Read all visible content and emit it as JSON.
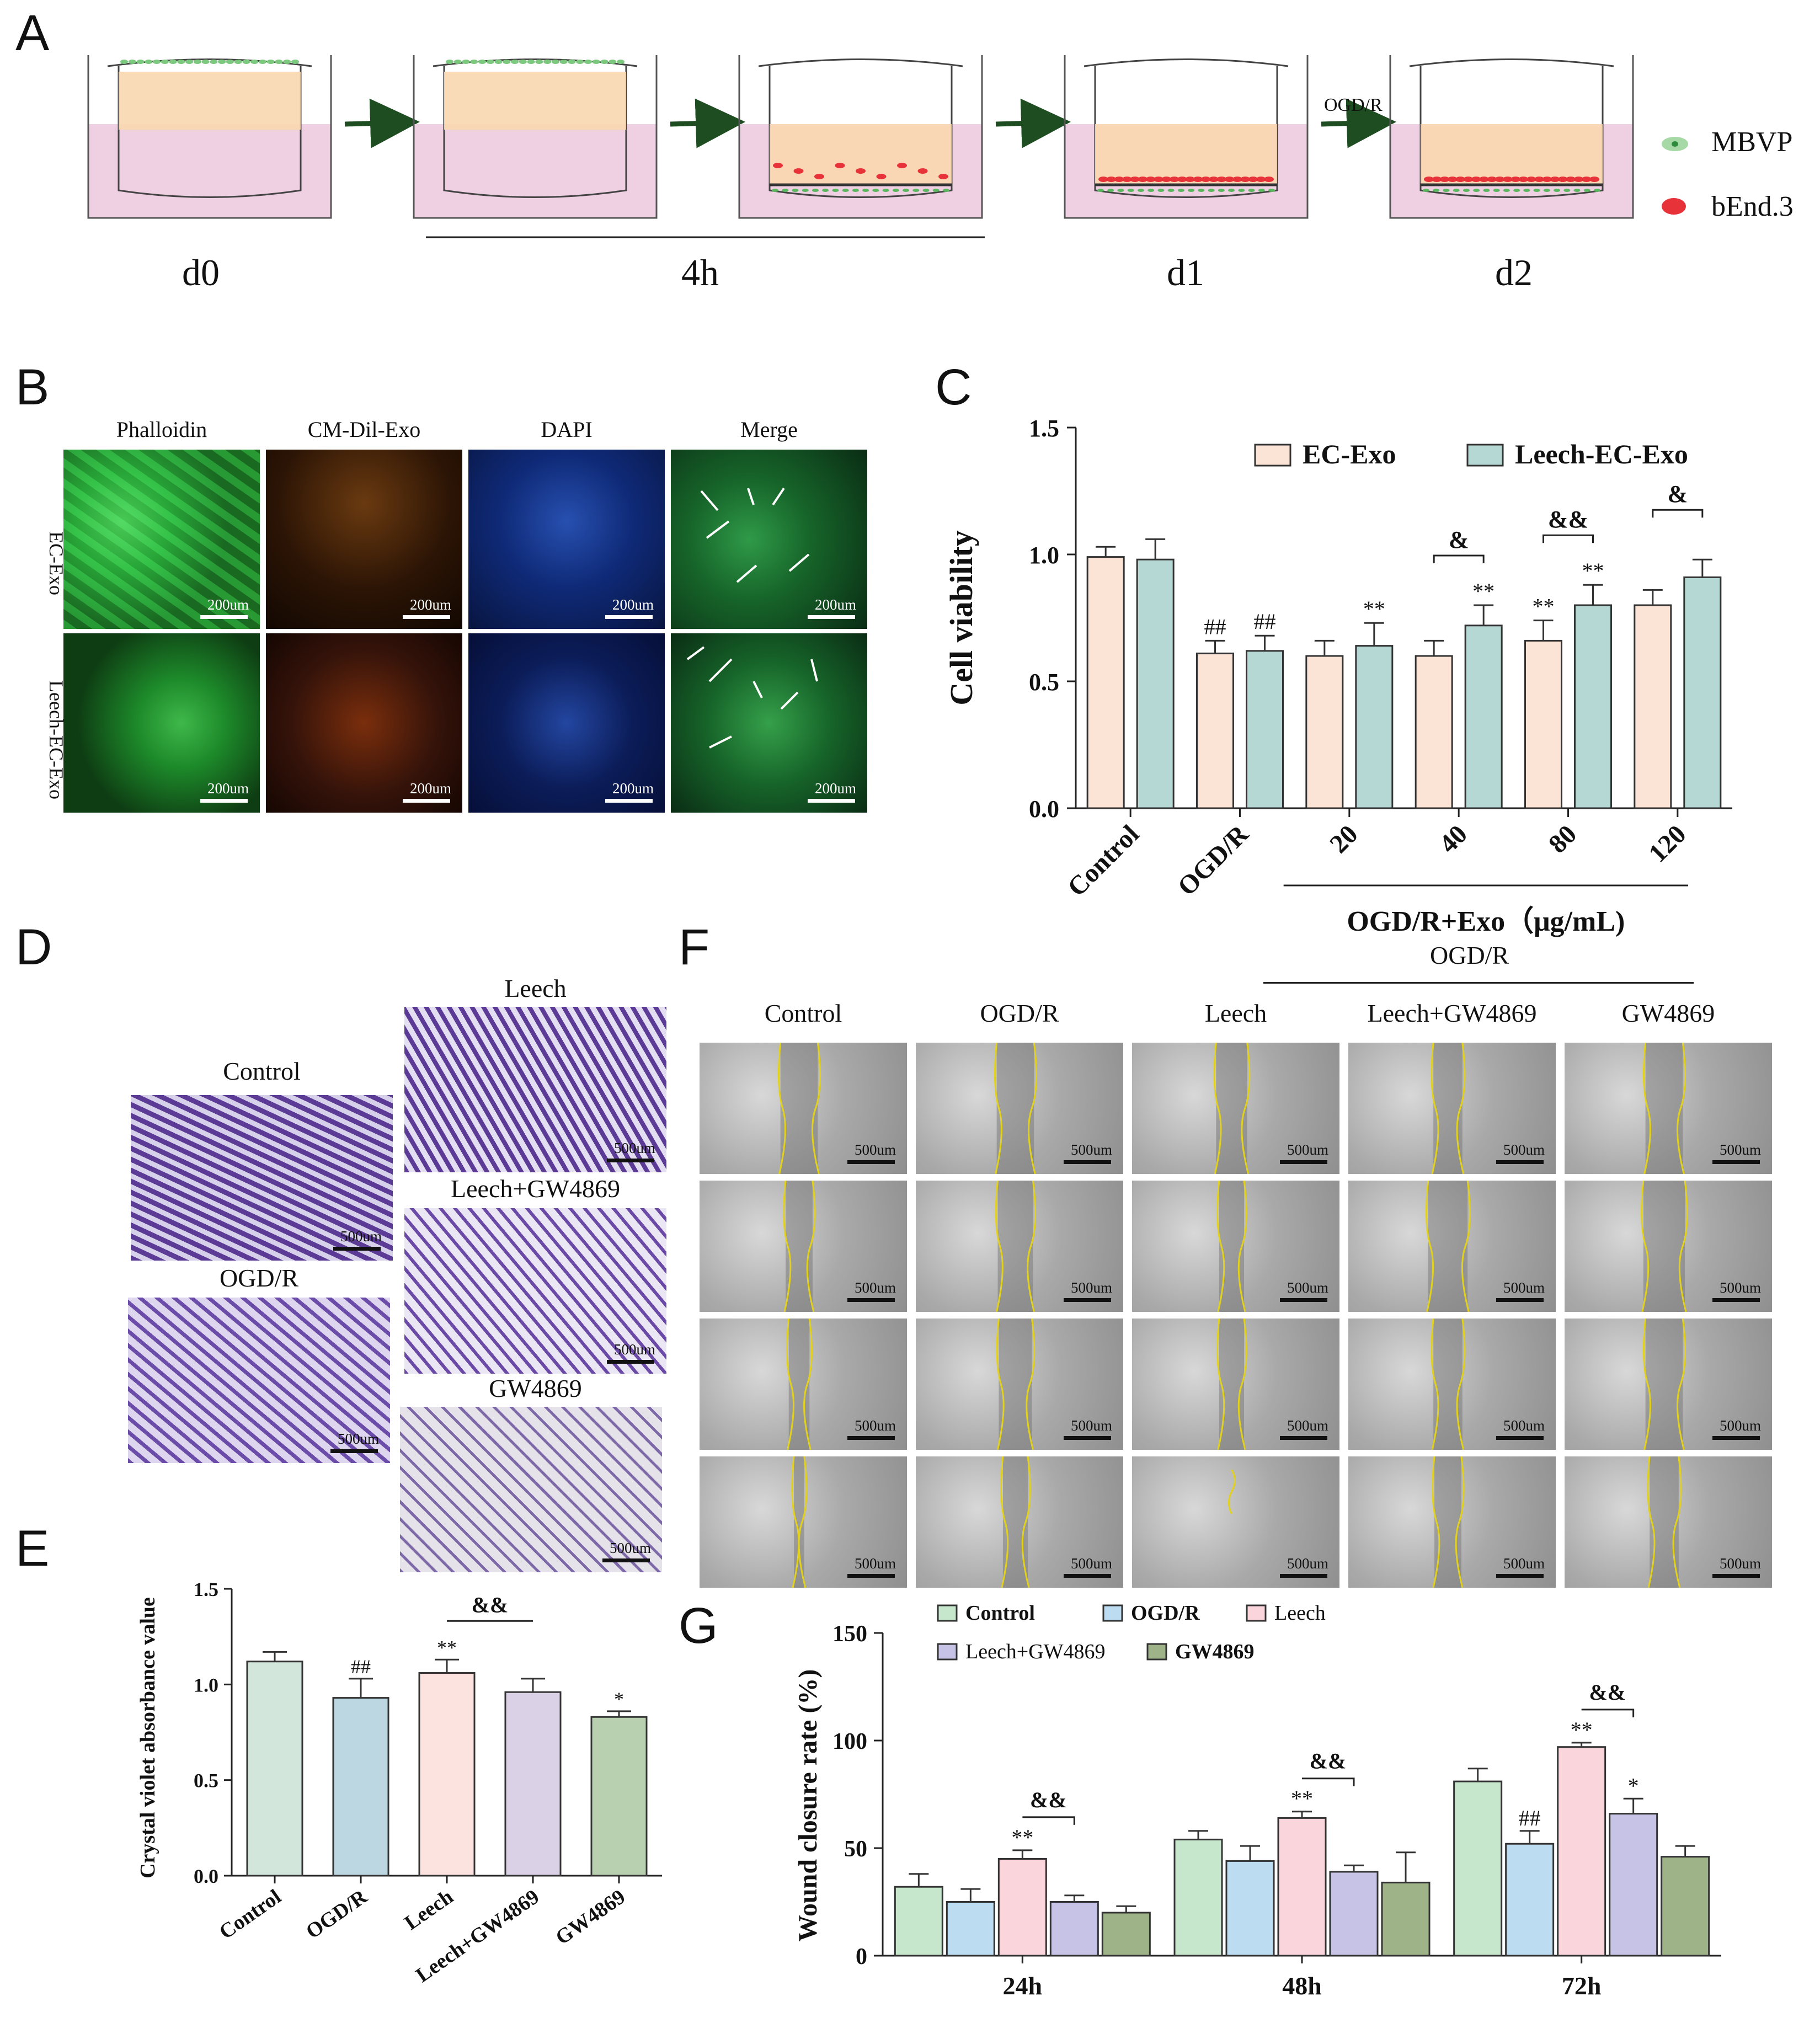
{
  "panels": {
    "A": "A",
    "B": "B",
    "C": "C",
    "D": "D",
    "E": "E",
    "F": "F",
    "G": "G"
  },
  "panelA": {
    "days": [
      "d0",
      "4h",
      "d1",
      "d2"
    ],
    "ogdr_label": "OGD/R",
    "legend": [
      {
        "label": "MBVP",
        "color": "#6cc070"
      },
      {
        "label": "bEnd.3",
        "color": "#e8323a"
      }
    ]
  },
  "panelB": {
    "columns": [
      "Phalloidin",
      "CM-Dil-Exo",
      "DAPI",
      "Merge"
    ],
    "rows": [
      "EC-Exo",
      "Leech-EC-Exo"
    ],
    "scale_bar": "200um",
    "colors": {
      "phalloidin": "#1d8a2a",
      "exo": "#3a1a05",
      "dapi": "#0b1c58",
      "merge": "#17662a"
    }
  },
  "panelC": {
    "chart_data": {
      "type": "bar",
      "title": "",
      "ylabel": "Cell viability",
      "xlabel": "OGD/R+Exo（μg/mL)",
      "ylim": [
        0,
        1.5
      ],
      "yticks": [
        "0.0",
        "0.5",
        "1.0",
        "1.5"
      ],
      "categories": [
        "Control",
        "OGD/R",
        "20",
        "40",
        "80",
        "120"
      ],
      "series": [
        {
          "name": "EC-Exo",
          "color": "#fbe3d6",
          "values": [
            0.99,
            0.61,
            0.6,
            0.6,
            0.66,
            0.8
          ],
          "errors": [
            0.04,
            0.05,
            0.06,
            0.06,
            0.08,
            0.06
          ]
        },
        {
          "name": "Leech-EC-Exo",
          "color": "#b5d8d4",
          "values": [
            0.98,
            0.62,
            0.64,
            0.72,
            0.8,
            0.91
          ],
          "errors": [
            0.08,
            0.06,
            0.09,
            0.08,
            0.08,
            0.07
          ]
        }
      ],
      "annotations": [
        {
          "text": "##",
          "group": 1,
          "series": 0
        },
        {
          "text": "##",
          "group": 1,
          "series": 1
        },
        {
          "text": "**",
          "group": 2,
          "series": 1
        },
        {
          "text": "**",
          "group": 3,
          "series": 1
        },
        {
          "text": "**",
          "group": 4,
          "series": 0
        },
        {
          "text": "**",
          "group": 4,
          "series": 1
        },
        {
          "text": "&",
          "group": 3,
          "bracket": true
        },
        {
          "text": "&&",
          "group": 4,
          "bracket": true
        },
        {
          "text": "&",
          "group": 5,
          "bracket": true
        }
      ]
    }
  },
  "panelD": {
    "labels": {
      "control": "Control",
      "ogdr": "OGD/R",
      "leech": "Leech",
      "leech_gw": "Leech+GW4869",
      "gw": "GW4869"
    },
    "scale_bar": "500um",
    "color": "#5b3b96"
  },
  "panelE": {
    "chart_data": {
      "type": "bar",
      "title": "",
      "ylabel": "Crystal violet absorbance value",
      "xlabel": "",
      "ylim": [
        0,
        1.5
      ],
      "yticks": [
        "0.0",
        "0.5",
        "1.0",
        "1.5"
      ],
      "categories": [
        "Control",
        "OGD/R",
        "Leech",
        "Leech+GW4869",
        "GW4869"
      ],
      "values": [
        1.12,
        0.93,
        1.06,
        0.96,
        0.83
      ],
      "errors": [
        0.05,
        0.1,
        0.07,
        0.07,
        0.03
      ],
      "colors": [
        "#d3e6dc",
        "#bcd7e2",
        "#fde3e0",
        "#dad1e6",
        "#b8cfb0"
      ],
      "annotations": [
        {
          "text": "##",
          "index": 1
        },
        {
          "text": "**",
          "index": 2
        },
        {
          "text": "*",
          "index": 4
        },
        {
          "text": "&&",
          "from": 2,
          "to": 3,
          "bracket": true
        }
      ]
    }
  },
  "panelF": {
    "header_group": "OGD/R",
    "columns": [
      "Control",
      "OGD/R",
      "Leech",
      "Leech+GW4869",
      "GW4869"
    ],
    "scale_bar": "500um",
    "color": "#9a9a9a",
    "edge_color": "#e2d11c"
  },
  "panelG": {
    "chart_data": {
      "type": "bar",
      "title": "",
      "ylabel": "Wound closure rate (%)",
      "xlabel": "",
      "ylim": [
        0,
        150
      ],
      "yticks": [
        "0",
        "50",
        "100",
        "150"
      ],
      "categories": [
        "24h",
        "48h",
        "72h"
      ],
      "series": [
        {
          "name": "Control",
          "color": "#c7e7cd",
          "values": [
            32,
            54,
            81
          ],
          "errors": [
            6,
            4,
            6
          ]
        },
        {
          "name": "OGD/R",
          "color": "#bcdcf2",
          "values": [
            25,
            44,
            52
          ],
          "errors": [
            6,
            7,
            6
          ]
        },
        {
          "name": "Leech",
          "color": "#fbd5dc",
          "values": [
            45,
            64,
            97
          ],
          "errors": [
            4,
            3,
            2
          ]
        },
        {
          "name": "Leech+GW4869",
          "color": "#c6c3e6",
          "values": [
            25,
            39,
            66
          ],
          "errors": [
            3,
            3,
            7
          ]
        },
        {
          "name": "GW4869",
          "color": "#9fb389",
          "values": [
            20,
            34,
            46
          ],
          "errors": [
            3,
            14,
            5
          ]
        }
      ],
      "annotations": [
        {
          "text": "**",
          "group": 0,
          "series": 2
        },
        {
          "text": "&&",
          "group": 0,
          "bracket": [
            2,
            3
          ]
        },
        {
          "text": "**",
          "group": 1,
          "series": 2
        },
        {
          "text": "&&",
          "group": 1,
          "bracket": [
            2,
            3
          ]
        },
        {
          "text": "##",
          "group": 2,
          "series": 1
        },
        {
          "text": "**",
          "group": 2,
          "series": 2
        },
        {
          "text": "*",
          "group": 2,
          "series": 3
        },
        {
          "text": "&&",
          "group": 2,
          "bracket": [
            2,
            3
          ]
        }
      ]
    }
  }
}
